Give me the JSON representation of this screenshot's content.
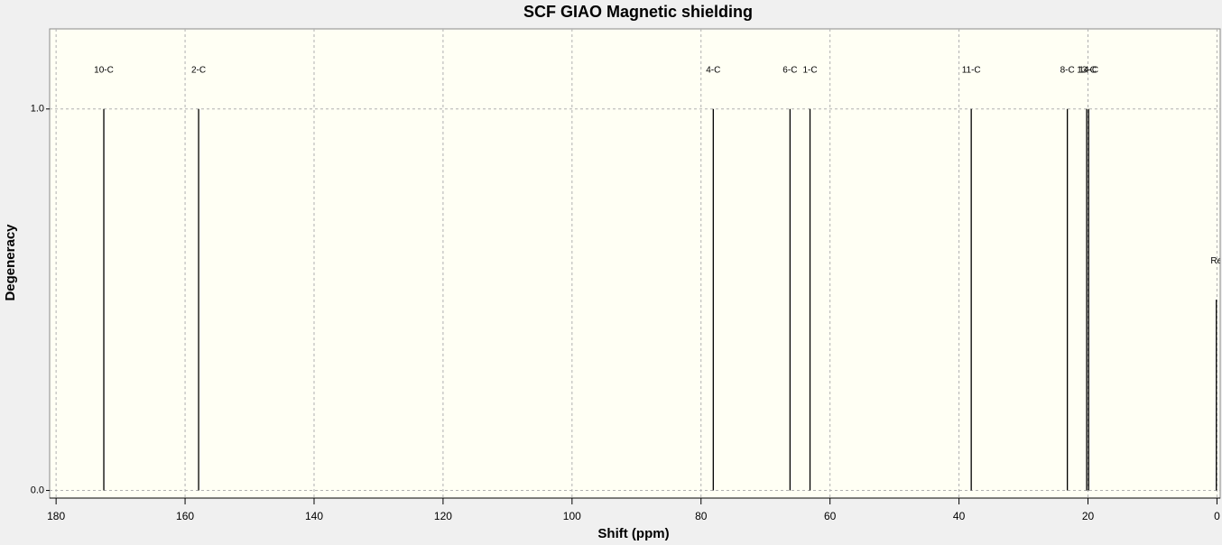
{
  "chart_data": {
    "type": "stem",
    "title": "SCF GIAO Magnetic shielding",
    "x_label": "Shift (ppm)",
    "y_label": "Degeneracy",
    "x": [
      172.6,
      157.9,
      78.1,
      66.2,
      63.1,
      38.1,
      23.2,
      20.2,
      19.9,
      0.1
    ],
    "values": [
      1,
      1,
      1,
      1,
      1,
      1,
      1,
      1,
      1,
      0.5
    ],
    "labels": [
      "10-C",
      "2-C",
      "4-C",
      "6-C",
      "1-C",
      "11-C",
      "8-C",
      "13-C",
      "14-C",
      "Re"
    ],
    "color": "#000000",
    "xlim": [
      181,
      -0.5
    ],
    "ylim": [
      -0.02,
      1.21
    ],
    "xticks": [
      180,
      160,
      140,
      120,
      100,
      80,
      60,
      40,
      20,
      0
    ],
    "yticks": [
      {
        "value": 0,
        "label": "0.0"
      },
      {
        "value": 1,
        "label": "1.0"
      }
    ],
    "grid": true
  }
}
